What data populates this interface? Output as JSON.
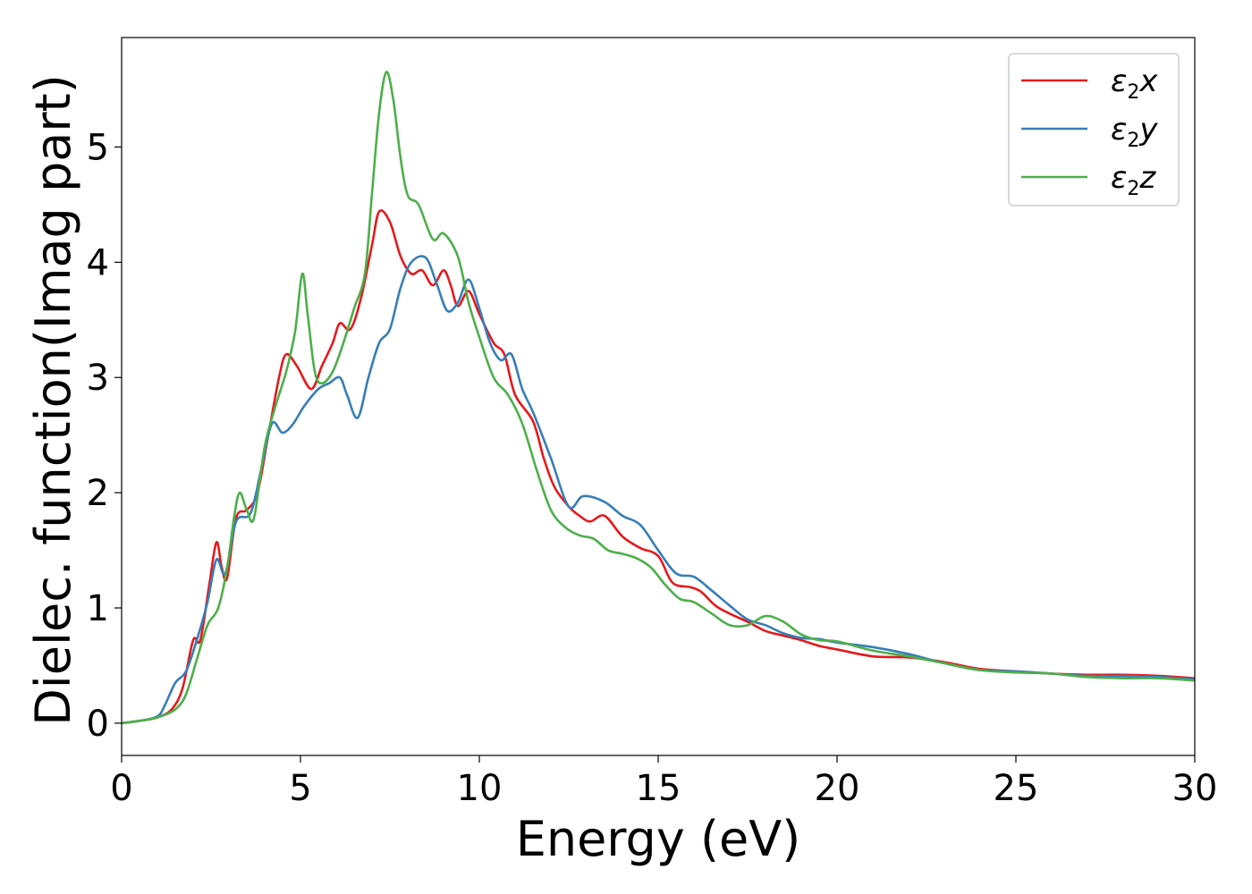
{
  "chart_data": {
    "type": "line",
    "xlabel": "Energy (eV)",
    "ylabel": "Dielec. function(Imag part)",
    "xlim": [
      0,
      30
    ],
    "ylim": [
      -0.28,
      5.95
    ],
    "xticks": [
      "0",
      "5",
      "10",
      "15",
      "20",
      "25",
      "30"
    ],
    "yticks": [
      "0",
      "1",
      "2",
      "3",
      "4",
      "5"
    ],
    "grid": false,
    "legend_position": "top-right",
    "series": [
      {
        "name": "ε2x",
        "legend_symbol": "ε",
        "legend_sub": "2",
        "legend_suffix": "x",
        "color": "#e41a1c",
        "points": [
          [
            0,
            0
          ],
          [
            0.5,
            0.02
          ],
          [
            1.0,
            0.05
          ],
          [
            1.4,
            0.12
          ],
          [
            1.7,
            0.3
          ],
          [
            2.0,
            0.72
          ],
          [
            2.2,
            0.72
          ],
          [
            2.45,
            1.2
          ],
          [
            2.65,
            1.57
          ],
          [
            2.8,
            1.35
          ],
          [
            2.95,
            1.26
          ],
          [
            3.2,
            1.78
          ],
          [
            3.5,
            1.85
          ],
          [
            3.8,
            2.0
          ],
          [
            4.1,
            2.5
          ],
          [
            4.4,
            3.0
          ],
          [
            4.6,
            3.2
          ],
          [
            4.9,
            3.1
          ],
          [
            5.3,
            2.9
          ],
          [
            5.6,
            3.1
          ],
          [
            5.9,
            3.3
          ],
          [
            6.1,
            3.47
          ],
          [
            6.4,
            3.42
          ],
          [
            6.7,
            3.7
          ],
          [
            7.0,
            4.15
          ],
          [
            7.2,
            4.44
          ],
          [
            7.5,
            4.35
          ],
          [
            7.8,
            4.05
          ],
          [
            8.1,
            3.9
          ],
          [
            8.4,
            3.93
          ],
          [
            8.7,
            3.8
          ],
          [
            9.0,
            3.93
          ],
          [
            9.2,
            3.8
          ],
          [
            9.4,
            3.62
          ],
          [
            9.7,
            3.75
          ],
          [
            10.0,
            3.55
          ],
          [
            10.4,
            3.3
          ],
          [
            10.7,
            3.2
          ],
          [
            11.0,
            2.85
          ],
          [
            11.5,
            2.62
          ],
          [
            11.8,
            2.3
          ],
          [
            12.1,
            2.05
          ],
          [
            12.5,
            1.88
          ],
          [
            12.8,
            1.8
          ],
          [
            13.1,
            1.75
          ],
          [
            13.5,
            1.8
          ],
          [
            14.0,
            1.62
          ],
          [
            14.5,
            1.52
          ],
          [
            15.0,
            1.45
          ],
          [
            15.4,
            1.22
          ],
          [
            15.9,
            1.18
          ],
          [
            16.2,
            1.14
          ],
          [
            16.6,
            1.02
          ],
          [
            17.0,
            0.95
          ],
          [
            17.5,
            0.88
          ],
          [
            18.0,
            0.8
          ],
          [
            18.5,
            0.76
          ],
          [
            19.0,
            0.72
          ],
          [
            19.5,
            0.67
          ],
          [
            20.0,
            0.64
          ],
          [
            21.0,
            0.58
          ],
          [
            22.0,
            0.57
          ],
          [
            23.0,
            0.53
          ],
          [
            24.0,
            0.47
          ],
          [
            25.0,
            0.45
          ],
          [
            26.0,
            0.43
          ],
          [
            27.0,
            0.42
          ],
          [
            28.0,
            0.42
          ],
          [
            29.0,
            0.41
          ],
          [
            30.0,
            0.39
          ]
        ]
      },
      {
        "name": "ε2y",
        "legend_symbol": "ε",
        "legend_sub": "2",
        "legend_suffix": "y",
        "color": "#377eb8",
        "points": [
          [
            0,
            0
          ],
          [
            0.5,
            0.02
          ],
          [
            1.0,
            0.06
          ],
          [
            1.2,
            0.15
          ],
          [
            1.5,
            0.35
          ],
          [
            1.8,
            0.45
          ],
          [
            2.1,
            0.72
          ],
          [
            2.4,
            1.05
          ],
          [
            2.65,
            1.42
          ],
          [
            2.9,
            1.3
          ],
          [
            3.2,
            1.75
          ],
          [
            3.6,
            1.82
          ],
          [
            3.9,
            2.2
          ],
          [
            4.2,
            2.6
          ],
          [
            4.5,
            2.52
          ],
          [
            4.8,
            2.6
          ],
          [
            5.1,
            2.75
          ],
          [
            5.5,
            2.9
          ],
          [
            5.8,
            2.95
          ],
          [
            6.1,
            3.0
          ],
          [
            6.3,
            2.85
          ],
          [
            6.6,
            2.65
          ],
          [
            6.9,
            3.0
          ],
          [
            7.2,
            3.3
          ],
          [
            7.5,
            3.42
          ],
          [
            7.8,
            3.78
          ],
          [
            8.1,
            4.0
          ],
          [
            8.5,
            4.04
          ],
          [
            8.8,
            3.82
          ],
          [
            9.1,
            3.58
          ],
          [
            9.4,
            3.65
          ],
          [
            9.7,
            3.85
          ],
          [
            10.0,
            3.6
          ],
          [
            10.3,
            3.3
          ],
          [
            10.6,
            3.15
          ],
          [
            10.9,
            3.2
          ],
          [
            11.2,
            2.9
          ],
          [
            11.5,
            2.7
          ],
          [
            12.0,
            2.3
          ],
          [
            12.5,
            1.88
          ],
          [
            12.9,
            1.97
          ],
          [
            13.5,
            1.92
          ],
          [
            14.0,
            1.8
          ],
          [
            14.5,
            1.72
          ],
          [
            15.0,
            1.5
          ],
          [
            15.5,
            1.3
          ],
          [
            16.0,
            1.27
          ],
          [
            16.5,
            1.15
          ],
          [
            17.0,
            1.02
          ],
          [
            17.5,
            0.9
          ],
          [
            18.0,
            0.85
          ],
          [
            18.5,
            0.78
          ],
          [
            19.0,
            0.74
          ],
          [
            19.5,
            0.73
          ],
          [
            20.0,
            0.7
          ],
          [
            21.0,
            0.66
          ],
          [
            22.0,
            0.6
          ],
          [
            23.0,
            0.52
          ],
          [
            24.0,
            0.46
          ],
          [
            25.0,
            0.45
          ],
          [
            26.0,
            0.43
          ],
          [
            27.0,
            0.41
          ],
          [
            28.0,
            0.41
          ],
          [
            29.0,
            0.4
          ],
          [
            30.0,
            0.38
          ]
        ]
      },
      {
        "name": "ε2z",
        "legend_symbol": "ε",
        "legend_sub": "2",
        "legend_suffix": "z",
        "color": "#4daf4a",
        "points": [
          [
            0,
            0
          ],
          [
            0.5,
            0.02
          ],
          [
            1.0,
            0.05
          ],
          [
            1.5,
            0.12
          ],
          [
            1.8,
            0.25
          ],
          [
            2.1,
            0.55
          ],
          [
            2.4,
            0.85
          ],
          [
            2.7,
            1.0
          ],
          [
            2.95,
            1.35
          ],
          [
            3.15,
            1.8
          ],
          [
            3.3,
            2.0
          ],
          [
            3.5,
            1.85
          ],
          [
            3.7,
            1.78
          ],
          [
            4.0,
            2.4
          ],
          [
            4.3,
            2.75
          ],
          [
            4.6,
            3.05
          ],
          [
            4.85,
            3.4
          ],
          [
            5.05,
            3.9
          ],
          [
            5.2,
            3.55
          ],
          [
            5.4,
            3.05
          ],
          [
            5.6,
            2.95
          ],
          [
            5.9,
            3.05
          ],
          [
            6.2,
            3.3
          ],
          [
            6.5,
            3.6
          ],
          [
            6.8,
            3.9
          ],
          [
            7.0,
            4.6
          ],
          [
            7.2,
            5.3
          ],
          [
            7.4,
            5.65
          ],
          [
            7.6,
            5.4
          ],
          [
            7.8,
            4.9
          ],
          [
            8.0,
            4.58
          ],
          [
            8.3,
            4.5
          ],
          [
            8.7,
            4.2
          ],
          [
            9.0,
            4.25
          ],
          [
            9.4,
            4.05
          ],
          [
            9.7,
            3.65
          ],
          [
            10.0,
            3.35
          ],
          [
            10.4,
            3.0
          ],
          [
            10.8,
            2.85
          ],
          [
            11.2,
            2.6
          ],
          [
            11.6,
            2.2
          ],
          [
            12.0,
            1.85
          ],
          [
            12.4,
            1.7
          ],
          [
            12.8,
            1.63
          ],
          [
            13.2,
            1.6
          ],
          [
            13.6,
            1.5
          ],
          [
            14.0,
            1.47
          ],
          [
            14.4,
            1.43
          ],
          [
            14.8,
            1.35
          ],
          [
            15.2,
            1.2
          ],
          [
            15.6,
            1.08
          ],
          [
            16.0,
            1.05
          ],
          [
            16.5,
            0.95
          ],
          [
            17.0,
            0.85
          ],
          [
            17.5,
            0.85
          ],
          [
            18.0,
            0.93
          ],
          [
            18.5,
            0.88
          ],
          [
            19.0,
            0.77
          ],
          [
            19.5,
            0.72
          ],
          [
            20.0,
            0.71
          ],
          [
            21.0,
            0.63
          ],
          [
            22.0,
            0.58
          ],
          [
            23.0,
            0.52
          ],
          [
            24.0,
            0.46
          ],
          [
            25.0,
            0.44
          ],
          [
            26.0,
            0.43
          ],
          [
            27.0,
            0.4
          ],
          [
            28.0,
            0.39
          ],
          [
            29.0,
            0.39
          ],
          [
            30.0,
            0.37
          ]
        ]
      }
    ]
  }
}
